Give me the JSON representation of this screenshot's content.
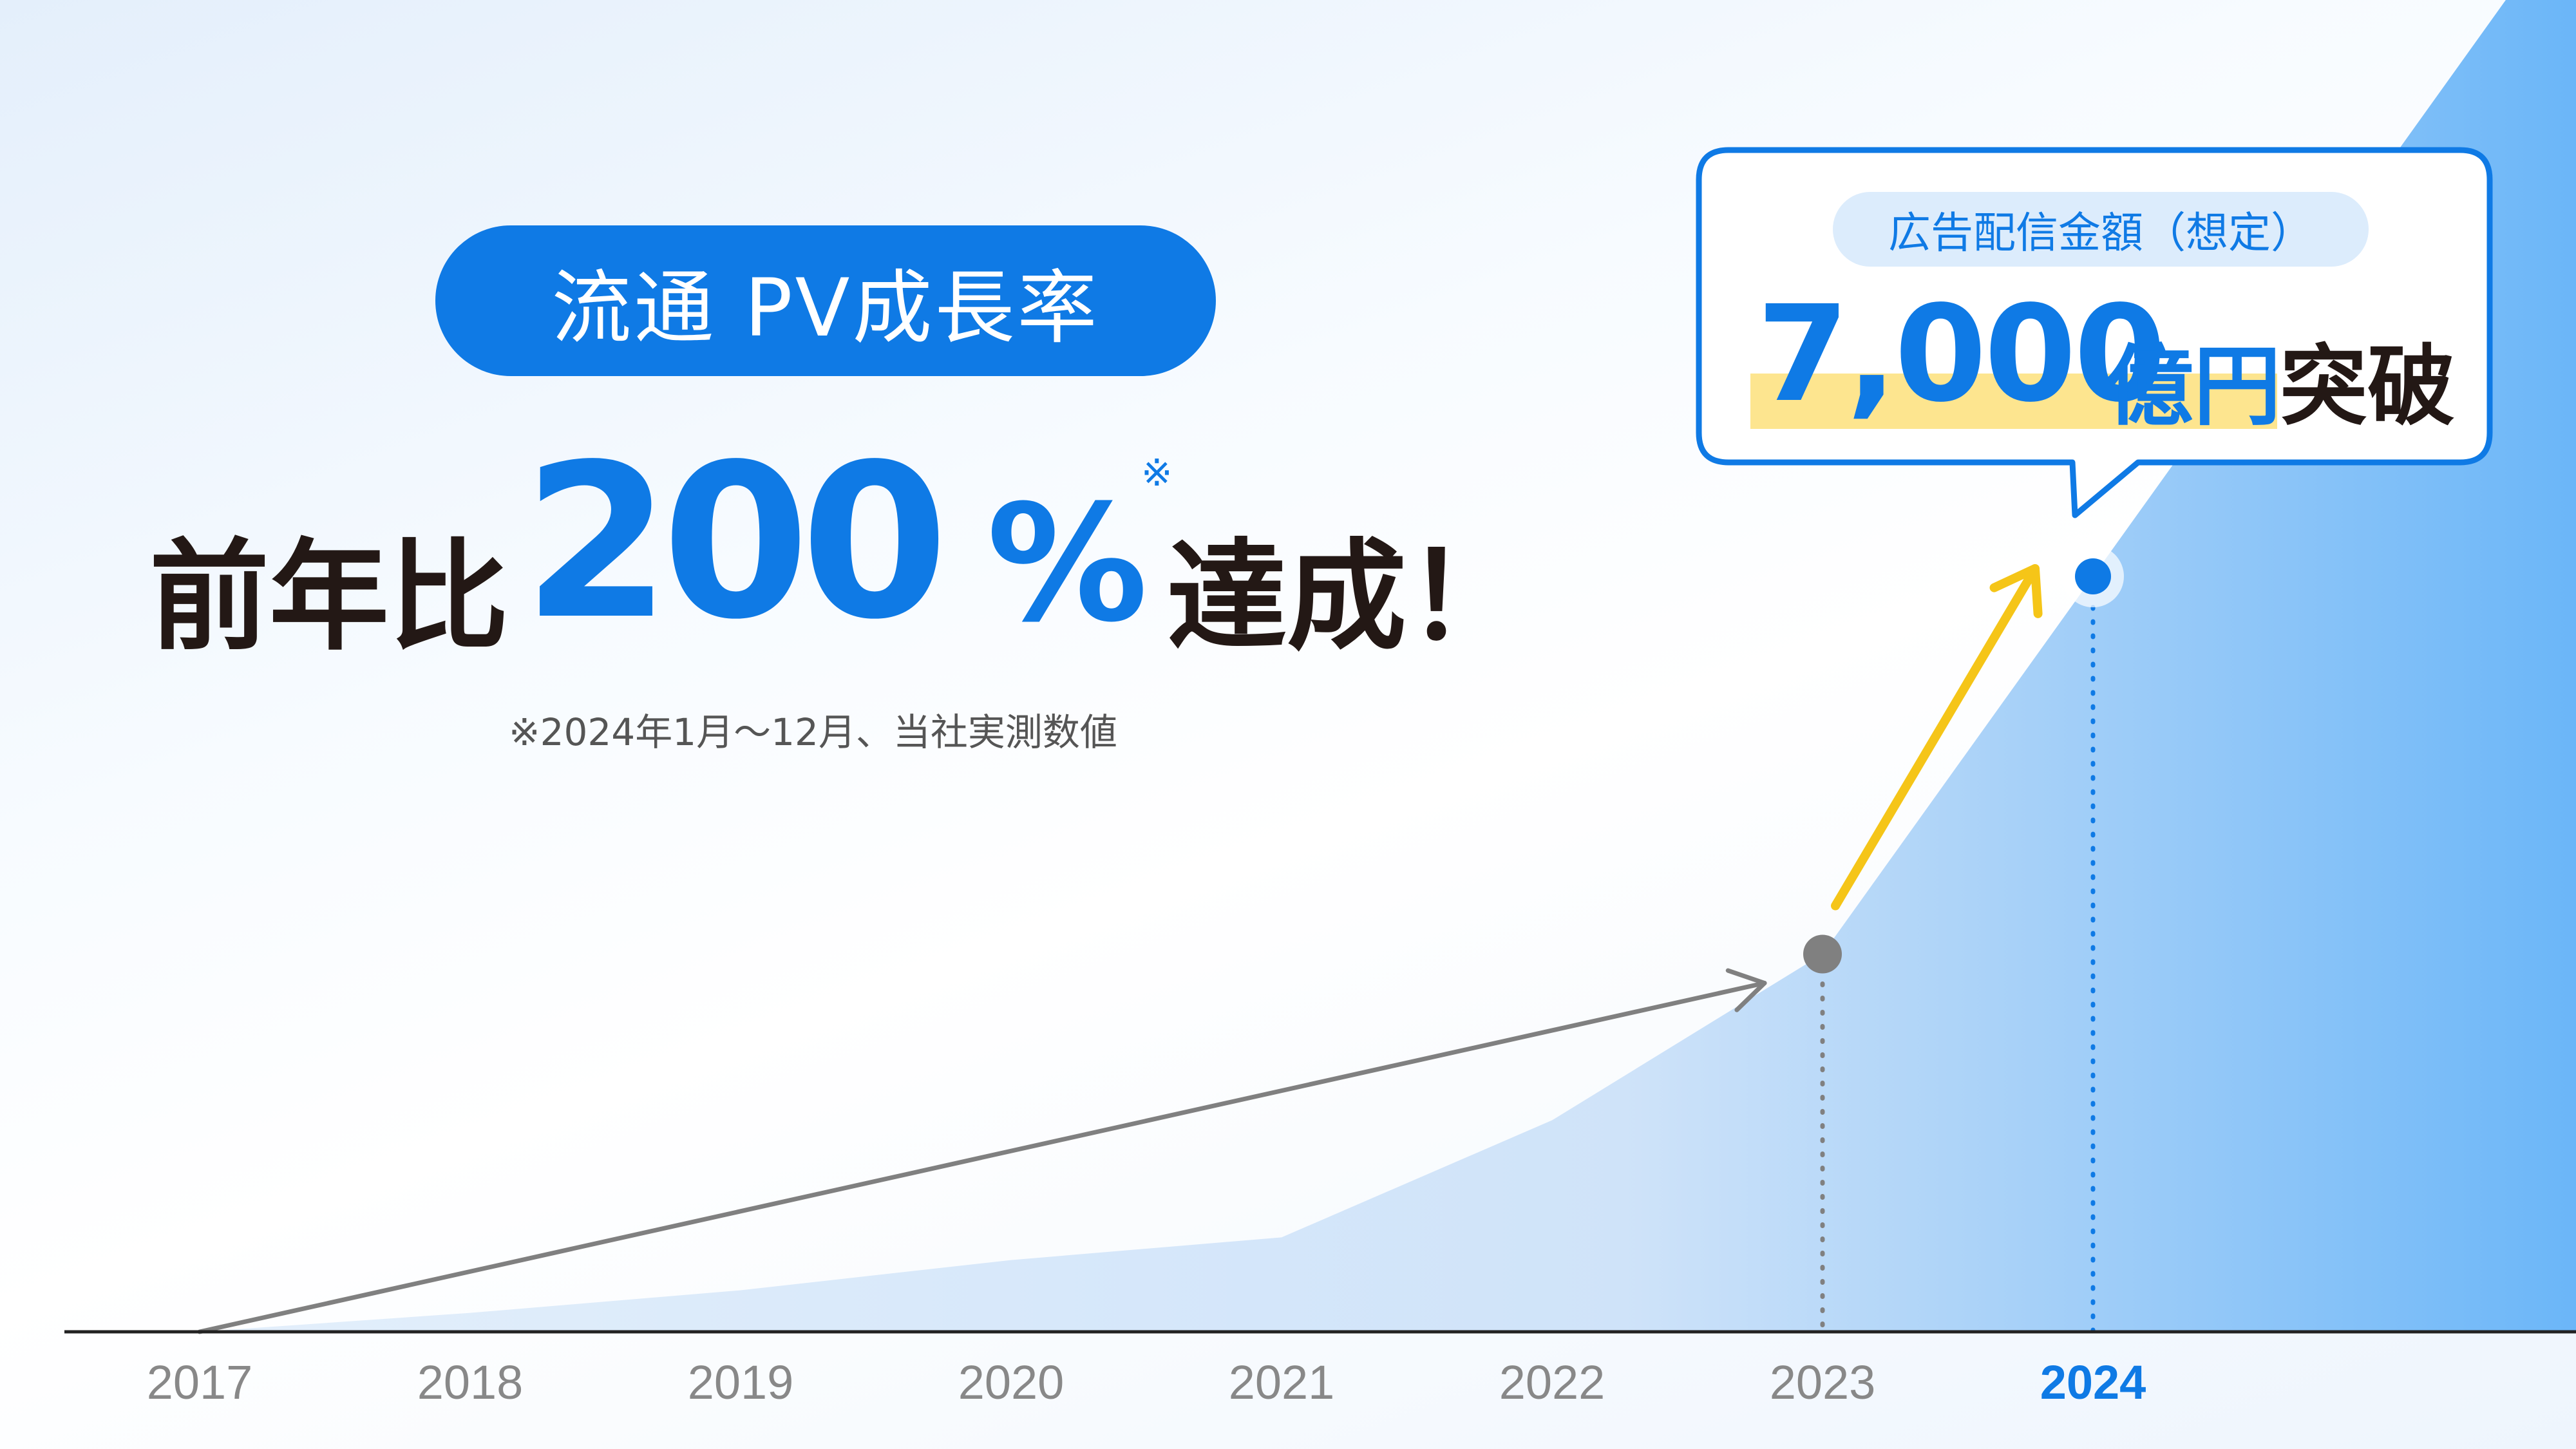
{
  "badge": {
    "label": "流通 PV成長率"
  },
  "headline": {
    "prefix": "前年比",
    "number": "200",
    "percent": "%",
    "note_mark": "※",
    "suffix": "達成！"
  },
  "footnote": "※2024年1月〜12月、当社実測数値",
  "callout": {
    "badge_label": "広告配信金額（想定）",
    "amount": "7,000",
    "unit": "億円",
    "suffix": "突破"
  },
  "colors": {
    "accent": "#0f7ae5",
    "text_dark": "#231815",
    "highlight": "#fde58f",
    "arrow_yellow": "#f5c518",
    "arrow_gray": "#808080",
    "muted_year": "#888888"
  },
  "chart_data": {
    "type": "area",
    "x": [
      "2017",
      "2018",
      "2019",
      "2020",
      "2021",
      "2022",
      "2023",
      "2024"
    ],
    "highlight_year": "2024",
    "xlabel": "",
    "ylabel": "",
    "grid": false,
    "legend": "none",
    "series": [
      {
        "values": [
          0,
          5,
          11,
          19,
          25,
          56,
          100,
          200
        ]
      }
    ],
    "markers": [
      {
        "x": "2023",
        "value": 100,
        "color": "#808080"
      },
      {
        "x": "2024",
        "value": 200,
        "color": "#0f7ae5"
      }
    ],
    "ylim": [
      0,
      200
    ]
  }
}
